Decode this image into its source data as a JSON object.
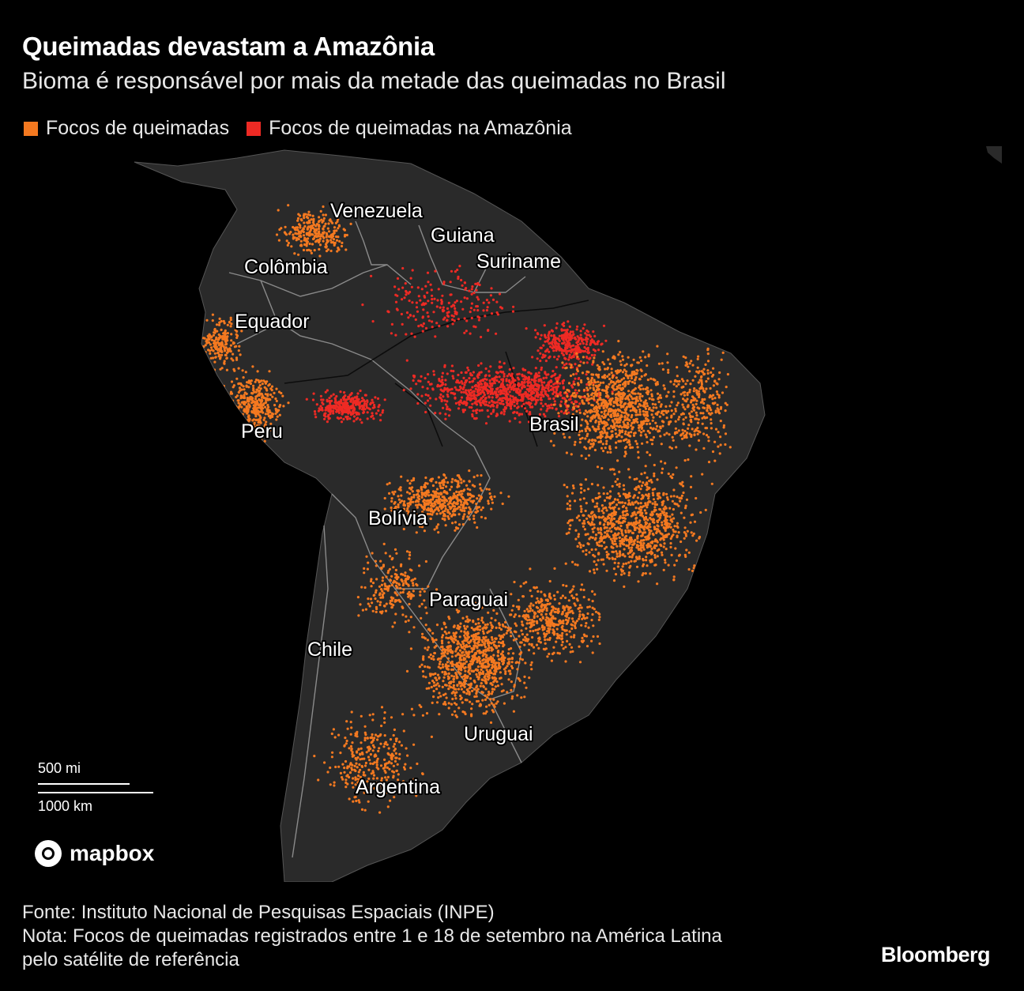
{
  "header": {
    "title": "Queimadas devastam a Amazônia",
    "subtitle": "Bioma é responsável por mais da metade das queimadas no Brasil"
  },
  "legend": {
    "items": [
      {
        "label": "Focos de queimadas",
        "color": "#f47920"
      },
      {
        "label": "Focos de queimadas na Amazônia",
        "color": "#ee2a24"
      }
    ]
  },
  "map": {
    "land_color": "#2a2a2a",
    "border_color": "#8a8a8a",
    "countries": [
      "Venezuela",
      "Guiana",
      "Suriname",
      "Colômbia",
      "Equador",
      "Peru",
      "Brasil",
      "Bolívia",
      "Paraguai",
      "Chile",
      "Uruguai",
      "Argentina"
    ]
  },
  "scale_bar": {
    "miles_label": "500 mi",
    "km_label": "1000 km"
  },
  "attribution": {
    "mapbox": "mapbox"
  },
  "footer": {
    "source": "Fonte: Instituto Nacional de Pesquisas Espaciais (INPE)",
    "note_line1": "Nota: Focos de queimadas registrados entre 1 e 18 de setembro na América Latina",
    "note_line2": "pelo satélite de referência",
    "brand": "Bloomberg"
  }
}
